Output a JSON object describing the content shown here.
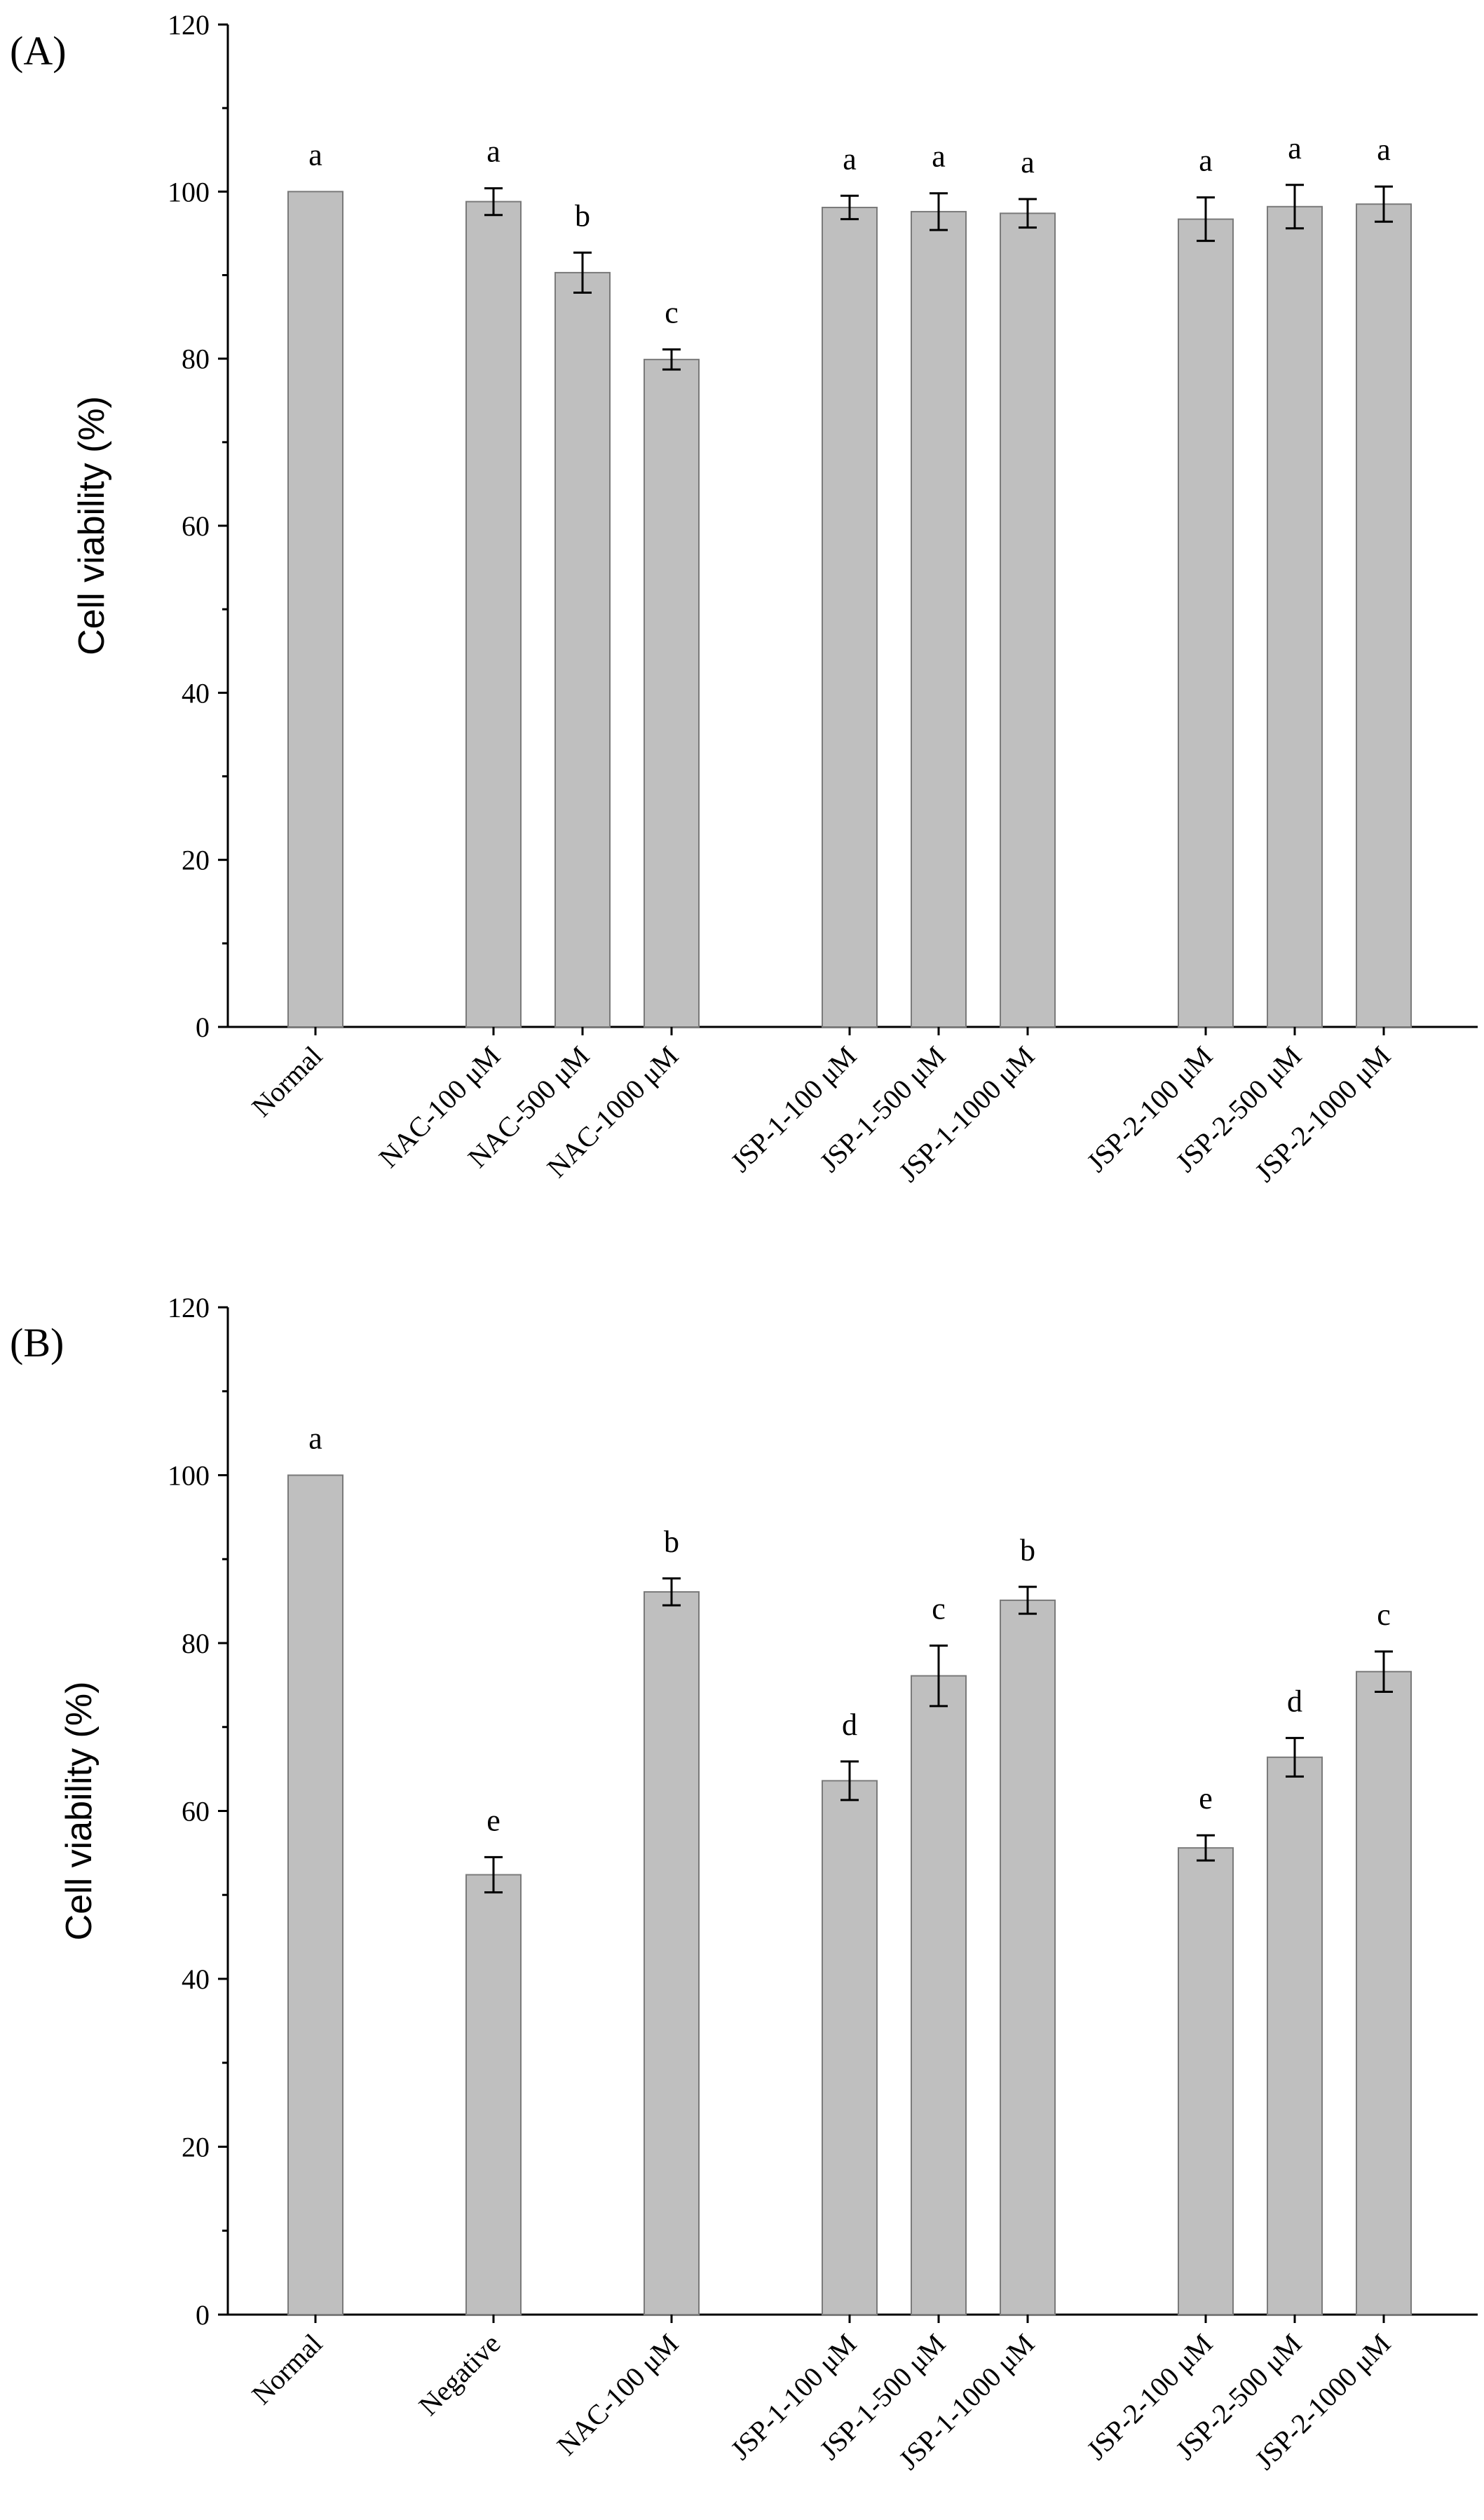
{
  "chart_data": [
    {
      "type": "bar",
      "panel_label": "(A)",
      "ylabel": "Cell viability (%)",
      "ylim": [
        0,
        120
      ],
      "yticks": [
        "0",
        "20",
        "40",
        "60",
        "80",
        "100",
        "120"
      ],
      "categories": [
        "Normal",
        "NAC-100 μM",
        "NAC-500 μM",
        "NAC-1000 μM",
        "JSP-1-100 μM",
        "JSP-1-500 μM",
        "JSP-1-1000 μM",
        "JSP-2-100 μM",
        "JSP-2-500 μM",
        "JSP-2-1000 μM"
      ],
      "groups": [
        0,
        1,
        1,
        1,
        2,
        2,
        2,
        3,
        3,
        3
      ],
      "values": [
        100,
        98.8,
        90.3,
        79.9,
        98.1,
        97.6,
        97.4,
        96.7,
        98.2,
        98.5
      ],
      "errors": [
        0,
        1.6,
        2.4,
        1.2,
        1.4,
        2.2,
        1.7,
        2.6,
        2.6,
        2.1
      ],
      "significance": [
        "a",
        "a",
        "b",
        "c",
        "a",
        "a",
        "a",
        "a",
        "a",
        "a"
      ]
    },
    {
      "type": "bar",
      "panel_label": "(B)",
      "ylabel": "Cell viability (%)",
      "ylim": [
        0,
        120
      ],
      "yticks": [
        "0",
        "20",
        "40",
        "60",
        "80",
        "100",
        "120"
      ],
      "categories": [
        "Normal",
        "Negative",
        "NAC-100 μM",
        "JSP-1-100 μM",
        "JSP-1-500 μM",
        "JSP-1-1000 μM",
        "JSP-2-100 μM",
        "JSP-2-500 μM",
        "JSP-2-1000 μM"
      ],
      "groups": [
        0,
        1,
        2,
        3,
        3,
        3,
        4,
        4,
        4
      ],
      "values": [
        100,
        52.4,
        86.1,
        63.6,
        76.1,
        85.1,
        55.6,
        66.4,
        76.6
      ],
      "errors": [
        0,
        2.1,
        1.6,
        2.3,
        3.6,
        1.6,
        1.5,
        2.3,
        2.4
      ],
      "significance": [
        "a",
        "e",
        "b",
        "d",
        "c",
        "b",
        "e",
        "d",
        "c"
      ]
    }
  ]
}
